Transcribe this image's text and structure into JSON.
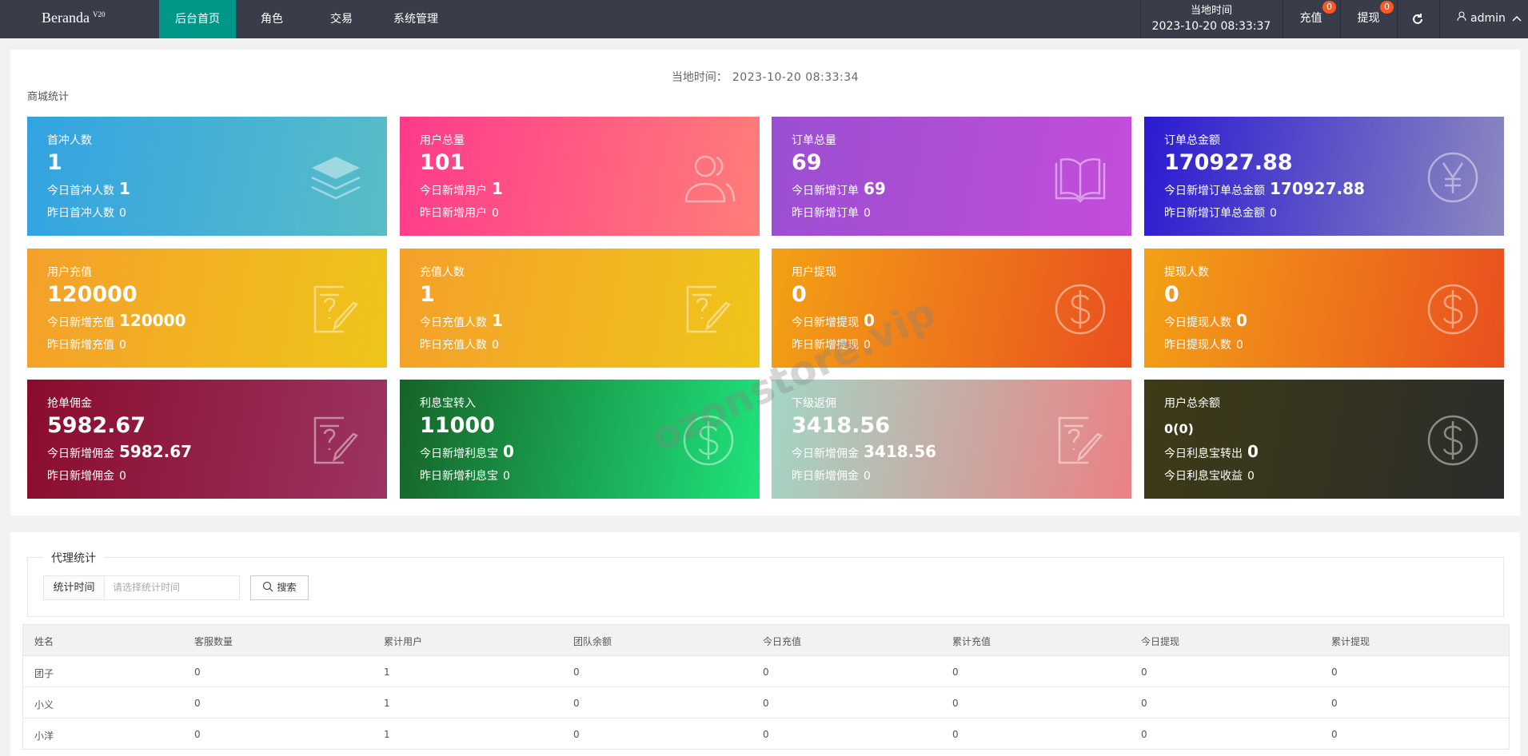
{
  "nav": {
    "logo": "Beranda",
    "version": "V20",
    "menu": [
      "后台首页",
      "角色",
      "交易",
      "系统管理"
    ],
    "clock_label": "当地时间",
    "clock_time": "2023-10-20 08:33:37",
    "recharge": {
      "label": "充值",
      "badge": "0"
    },
    "withdraw": {
      "label": "提现",
      "badge": "0"
    },
    "user": "admin"
  },
  "stats": {
    "time_label": "当地时间：",
    "time": "2023-10-20 08:33:34",
    "title": "商城统计",
    "cards": [
      {
        "title": "首冲人数",
        "value": "1",
        "today_label": "今日首冲人数",
        "today_value": "1",
        "yesterday_label": "昨日首冲人数",
        "yesterday_value": "0"
      },
      {
        "title": "用户总量",
        "value": "101",
        "today_label": "今日新增用户",
        "today_value": "1",
        "yesterday_label": "昨日新增用户",
        "yesterday_value": "0"
      },
      {
        "title": "订单总量",
        "value": "69",
        "today_label": "今日新增订单",
        "today_value": "69",
        "yesterday_label": "昨日新增订单",
        "yesterday_value": "0"
      },
      {
        "title": "订单总金额",
        "value": "170927.88",
        "today_label": "今日新增订单总金额",
        "today_value": "170927.88",
        "yesterday_label": "昨日新增订单总金额",
        "yesterday_value": "0"
      },
      {
        "title": "用户充值",
        "value": "120000",
        "today_label": "今日新增充值",
        "today_value": "120000",
        "yesterday_label": "昨日新增充值",
        "yesterday_value": "0"
      },
      {
        "title": "充值人数",
        "value": "1",
        "today_label": "今日充值人数",
        "today_value": "1",
        "yesterday_label": "昨日充值人数",
        "yesterday_value": "0"
      },
      {
        "title": "用户提现",
        "value": "0",
        "today_label": "今日新增提现",
        "today_value": "0",
        "yesterday_label": "昨日新增提现",
        "yesterday_value": "0"
      },
      {
        "title": "提现人数",
        "value": "0",
        "today_label": "今日提现人数",
        "today_value": "0",
        "yesterday_label": "昨日提现人数",
        "yesterday_value": "0"
      },
      {
        "title": "抢单佣金",
        "value": "5982.67",
        "today_label": "今日新增佣金",
        "today_value": "5982.67",
        "yesterday_label": "昨日新增佣金",
        "yesterday_value": "0"
      },
      {
        "title": "利息宝转入",
        "value": "11000",
        "today_label": "今日新增利息宝",
        "today_value": "0",
        "yesterday_label": "昨日新增利息宝",
        "yesterday_value": "0"
      },
      {
        "title": "下级返佣",
        "value": "3418.56",
        "today_label": "今日新增佣金",
        "today_value": "3418.56",
        "yesterday_label": "昨日新增佣金",
        "yesterday_value": "0"
      },
      {
        "title": "用户总余额",
        "value": "0(0)",
        "today_label": "今日利息宝转出",
        "today_value": "0",
        "yesterday_label": "今日利息宝收益",
        "yesterday_value": "0"
      }
    ]
  },
  "agent": {
    "legend": "代理统计",
    "filter_label": "统计时间",
    "filter_placeholder": "请选择统计时间",
    "search_button": "搜索",
    "table": {
      "columns": [
        "姓名",
        "客服数量",
        "累计用户",
        "团队余额",
        "今日充值",
        "累计充值",
        "今日提现",
        "累计提现"
      ],
      "rows": [
        [
          "团子",
          "0",
          "1",
          "0",
          "0",
          "0",
          "0",
          "0"
        ],
        [
          "小义",
          "0",
          "1",
          "0",
          "0",
          "0",
          "0",
          "0"
        ],
        [
          "小洋",
          "0",
          "1",
          "0",
          "0",
          "0",
          "0",
          "0"
        ]
      ]
    }
  },
  "watermark": "ozonstore.vip"
}
